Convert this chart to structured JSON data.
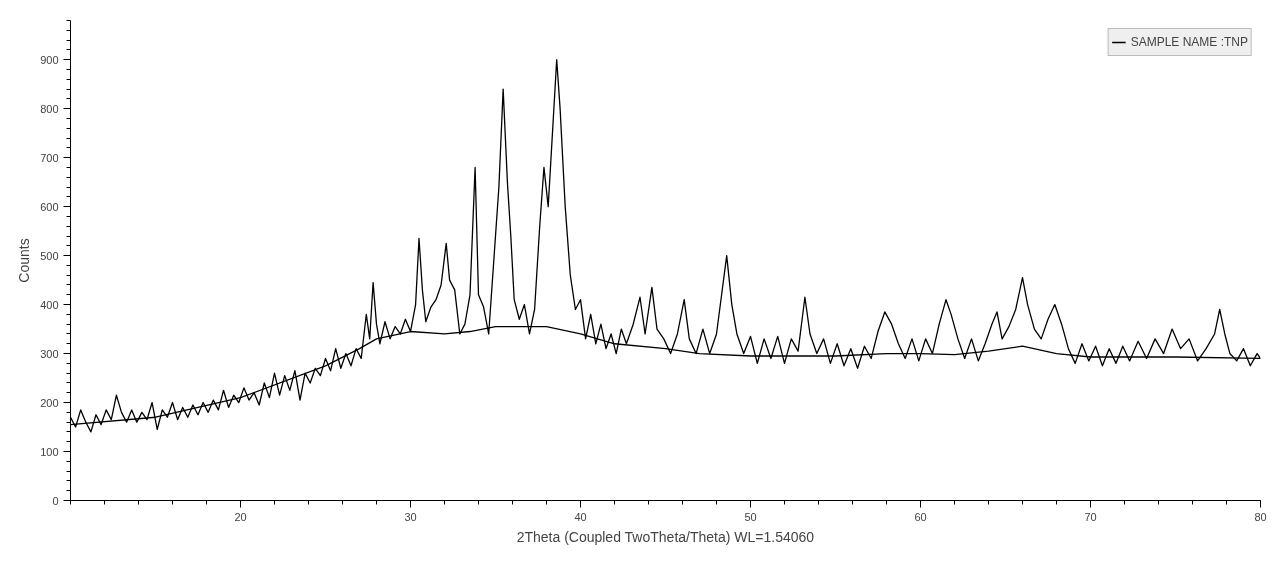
{
  "chart_data": {
    "type": "line",
    "xlabel": "2Theta (Coupled TwoTheta/Theta) WL=1.54060",
    "ylabel": "Counts",
    "xlim": [
      10,
      80
    ],
    "ylim": [
      0,
      980
    ],
    "xticks": [
      20,
      30,
      40,
      50,
      60,
      70,
      80
    ],
    "yticks": [
      0,
      100,
      200,
      300,
      400,
      500,
      600,
      700,
      800,
      900
    ],
    "grid": false,
    "legend": "top right",
    "marker": "none",
    "line_style": "solid",
    "series": [
      {
        "name": "SAMPLE NAME :TNP",
        "color": "#000000",
        "x": [
          10,
          10.3,
          10.6,
          10.9,
          11.2,
          11.5,
          11.8,
          12.1,
          12.4,
          12.7,
          13,
          13.3,
          13.6,
          13.9,
          14.2,
          14.5,
          14.8,
          15.1,
          15.4,
          15.7,
          16,
          16.3,
          16.6,
          16.9,
          17.2,
          17.5,
          17.8,
          18.1,
          18.4,
          18.7,
          19,
          19.3,
          19.6,
          19.9,
          20.2,
          20.5,
          20.8,
          21.1,
          21.4,
          21.7,
          22,
          22.3,
          22.6,
          22.9,
          23.2,
          23.5,
          23.8,
          24.1,
          24.4,
          24.7,
          25,
          25.3,
          25.6,
          25.9,
          26.2,
          26.5,
          26.8,
          27.1,
          27.4,
          27.6,
          27.8,
          28,
          28.2,
          28.5,
          28.8,
          29.1,
          29.4,
          29.7,
          30,
          30.3,
          30.5,
          30.7,
          30.9,
          31.2,
          31.5,
          31.8,
          32.1,
          32.3,
          32.6,
          32.9,
          33.2,
          33.5,
          33.8,
          34,
          34.3,
          34.6,
          34.9,
          35.2,
          35.45,
          35.7,
          35.9,
          36.1,
          36.4,
          36.7,
          37,
          37.3,
          37.6,
          37.85,
          38.1,
          38.4,
          38.6,
          38.8,
          39.1,
          39.4,
          39.7,
          40,
          40.3,
          40.6,
          40.9,
          41.2,
          41.5,
          41.8,
          42.1,
          42.4,
          42.7,
          43.1,
          43.5,
          43.8,
          44.2,
          44.5,
          44.9,
          45.3,
          45.7,
          46.1,
          46.4,
          46.8,
          47.2,
          47.6,
          48,
          48.3,
          48.6,
          48.9,
          49.2,
          49.6,
          50,
          50.4,
          50.8,
          51.2,
          51.6,
          52,
          52.4,
          52.8,
          53.2,
          53.5,
          53.9,
          54.3,
          54.7,
          55.1,
          55.5,
          55.9,
          56.3,
          56.7,
          57.1,
          57.5,
          57.9,
          58.3,
          58.7,
          59.1,
          59.5,
          59.9,
          60.3,
          60.7,
          61.1,
          61.5,
          61.8,
          62.2,
          62.6,
          63,
          63.4,
          63.8,
          64.2,
          64.5,
          64.8,
          65.2,
          65.6,
          66,
          66.3,
          66.7,
          67.1,
          67.5,
          67.9,
          68.3,
          68.7,
          69.1,
          69.5,
          69.9,
          70.3,
          70.7,
          71.1,
          71.5,
          71.9,
          72.3,
          72.8,
          73.3,
          73.8,
          74.3,
          74.8,
          75.3,
          75.8,
          76.3,
          76.8,
          77.3,
          77.6,
          77.9,
          78.2,
          78.6,
          79,
          79.4,
          79.8,
          80
        ],
        "values": [
          170,
          150,
          185,
          160,
          140,
          175,
          155,
          185,
          165,
          215,
          180,
          160,
          185,
          160,
          180,
          165,
          200,
          145,
          185,
          170,
          200,
          165,
          190,
          170,
          195,
          175,
          200,
          180,
          205,
          185,
          225,
          190,
          215,
          200,
          230,
          205,
          220,
          195,
          240,
          210,
          260,
          215,
          255,
          225,
          265,
          205,
          260,
          240,
          270,
          255,
          290,
          265,
          310,
          270,
          300,
          275,
          310,
          290,
          380,
          330,
          445,
          360,
          320,
          365,
          330,
          355,
          340,
          370,
          345,
          400,
          535,
          430,
          365,
          395,
          410,
          440,
          525,
          450,
          430,
          340,
          360,
          420,
          680,
          420,
          395,
          340,
          490,
          640,
          840,
          650,
          540,
          410,
          370,
          400,
          340,
          390,
          560,
          680,
          600,
          780,
          900,
          800,
          600,
          460,
          390,
          410,
          330,
          380,
          320,
          360,
          310,
          340,
          300,
          350,
          320,
          360,
          415,
          340,
          435,
          350,
          330,
          300,
          340,
          410,
          330,
          300,
          350,
          300,
          340,
          420,
          500,
          400,
          340,
          300,
          335,
          280,
          330,
          290,
          335,
          280,
          330,
          305,
          415,
          340,
          300,
          330,
          280,
          320,
          275,
          310,
          270,
          315,
          290,
          345,
          385,
          360,
          320,
          290,
          330,
          285,
          330,
          300,
          360,
          410,
          380,
          330,
          290,
          330,
          285,
          320,
          360,
          385,
          330,
          355,
          390,
          455,
          400,
          350,
          330,
          370,
          400,
          360,
          310,
          280,
          320,
          285,
          315,
          275,
          310,
          280,
          315,
          285,
          325,
          290,
          330,
          300,
          350,
          310,
          330,
          285,
          310,
          340,
          390,
          340,
          300,
          285,
          310,
          275,
          300,
          290
        ]
      },
      {
        "color": "#000000",
        "x": [
          10,
          15,
          20,
          25,
          27,
          28,
          30,
          32,
          33.5,
          35,
          38,
          40,
          42,
          45,
          47,
          50,
          55,
          58,
          60,
          62,
          64,
          66,
          68,
          70,
          75,
          80
        ],
        "values": [
          155,
          170,
          210,
          275,
          310,
          330,
          345,
          340,
          345,
          355,
          355,
          340,
          320,
          310,
          300,
          295,
          295,
          300,
          300,
          298,
          305,
          315,
          300,
          293,
          293,
          290
        ]
      }
    ]
  }
}
